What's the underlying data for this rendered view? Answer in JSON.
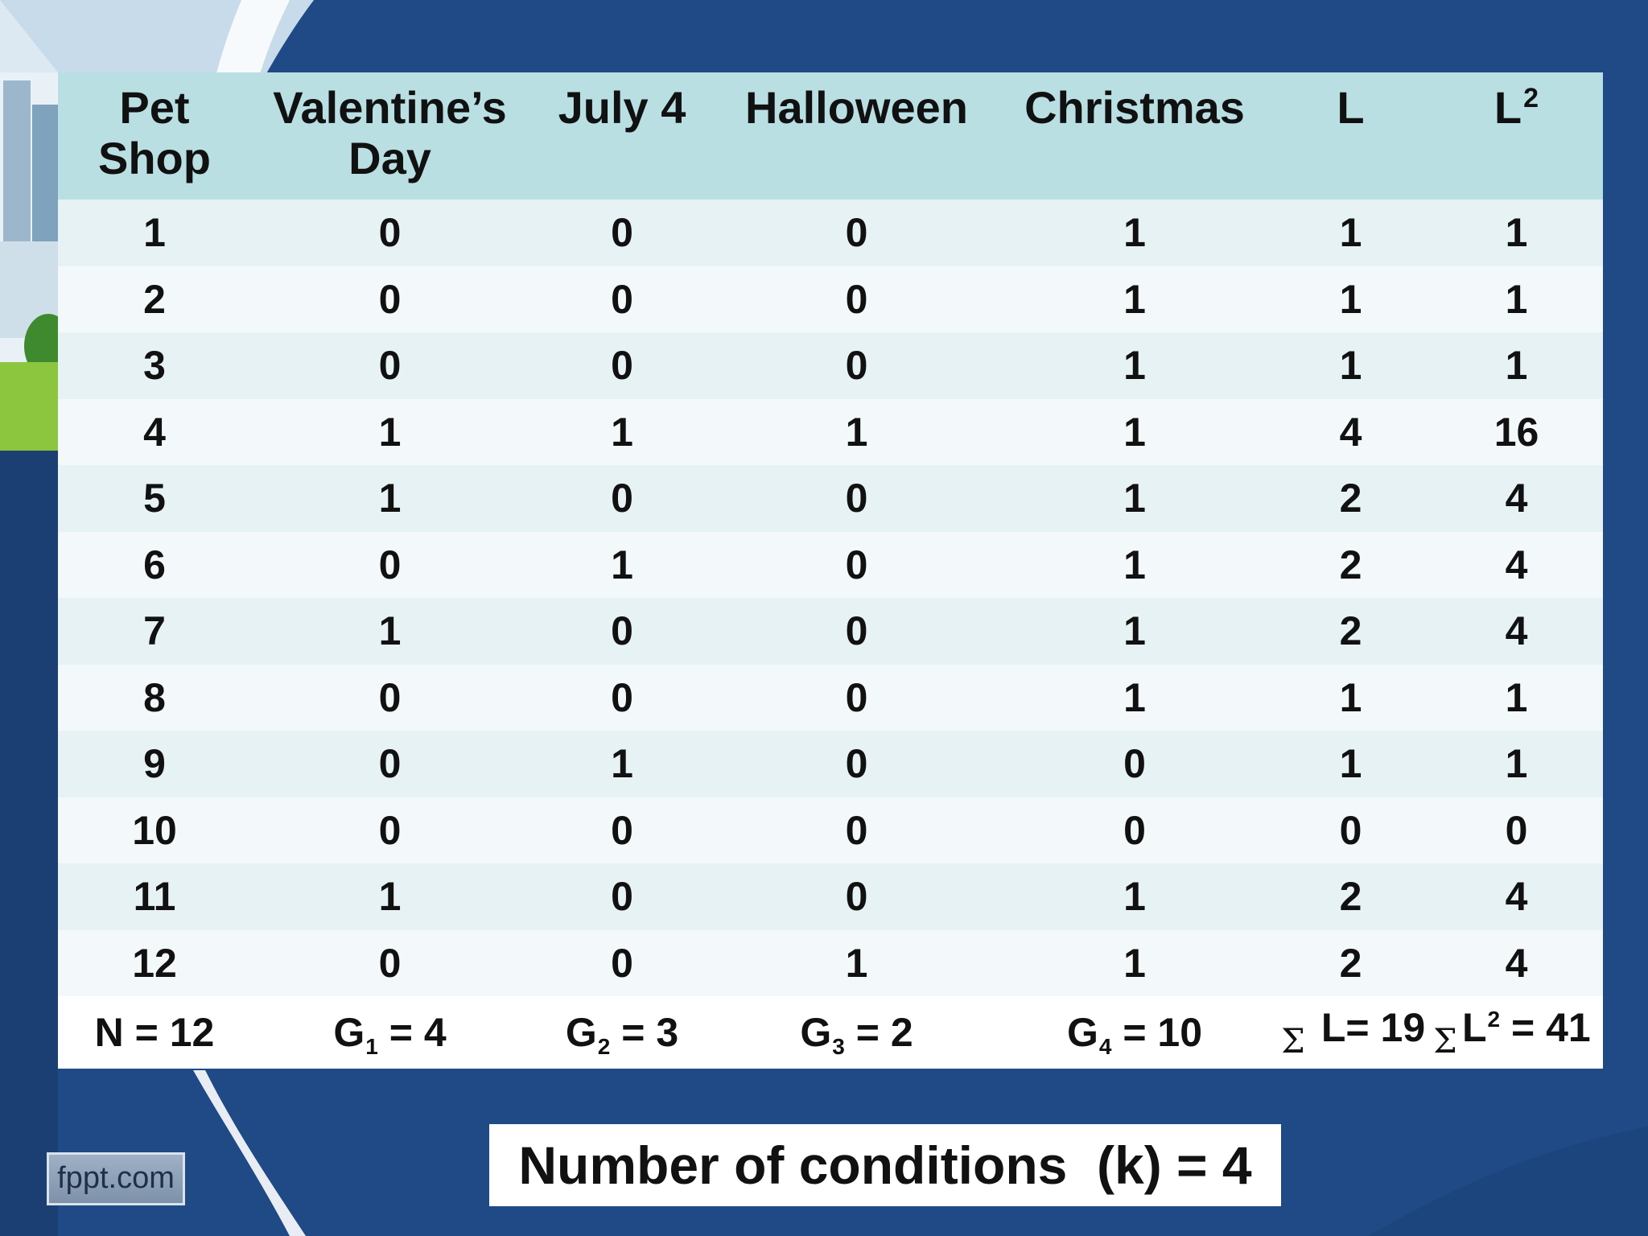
{
  "table": {
    "headers": [
      "Pet Shop",
      "Valentine’s Day",
      "July 4",
      "Halloween",
      "Christmas",
      "L",
      "L"
    ],
    "header_superscript": "2",
    "rows": [
      [
        "1",
        "0",
        "0",
        "0",
        "1",
        "1",
        "1"
      ],
      [
        "2",
        "0",
        "0",
        "0",
        "1",
        "1",
        "1"
      ],
      [
        "3",
        "0",
        "0",
        "0",
        "1",
        "1",
        "1"
      ],
      [
        "4",
        "1",
        "1",
        "1",
        "1",
        "4",
        "16"
      ],
      [
        "5",
        "1",
        "0",
        "0",
        "1",
        "2",
        "4"
      ],
      [
        "6",
        "0",
        "1",
        "0",
        "1",
        "2",
        "4"
      ],
      [
        "7",
        "1",
        "0",
        "0",
        "1",
        "2",
        "4"
      ],
      [
        "8",
        "0",
        "0",
        "0",
        "1",
        "1",
        "1"
      ],
      [
        "9",
        "0",
        "1",
        "0",
        "0",
        "1",
        "1"
      ],
      [
        "10",
        "0",
        "0",
        "0",
        "0",
        "0",
        "0"
      ],
      [
        "11",
        "1",
        "0",
        "0",
        "1",
        "2",
        "4"
      ],
      [
        "12",
        "0",
        "0",
        "1",
        "1",
        "2",
        "4"
      ]
    ],
    "totals": {
      "n": "N = 12",
      "groups": [
        {
          "letter": "G",
          "sub": "1",
          "rest": " = 4"
        },
        {
          "letter": "G",
          "sub": "2",
          "rest": " = 3"
        },
        {
          "letter": "G",
          "sub": "3",
          "rest": " = 2"
        },
        {
          "letter": "G",
          "sub": "4",
          "rest": " = 10"
        }
      ],
      "sigma": "Σ",
      "sum_l": " L= 19",
      "sum_l2_letter": "L",
      "sum_l2_sup": "2",
      "sum_l2_rest": " = 41"
    }
  },
  "footer_box": "Number of conditions  (k) = 4",
  "logo_text": "fppt.com",
  "colors": {
    "background": "#1f4a86",
    "header_row": "#b9dfe3",
    "row_odd": "#e7f2f4",
    "row_even": "#f3f9fa"
  }
}
